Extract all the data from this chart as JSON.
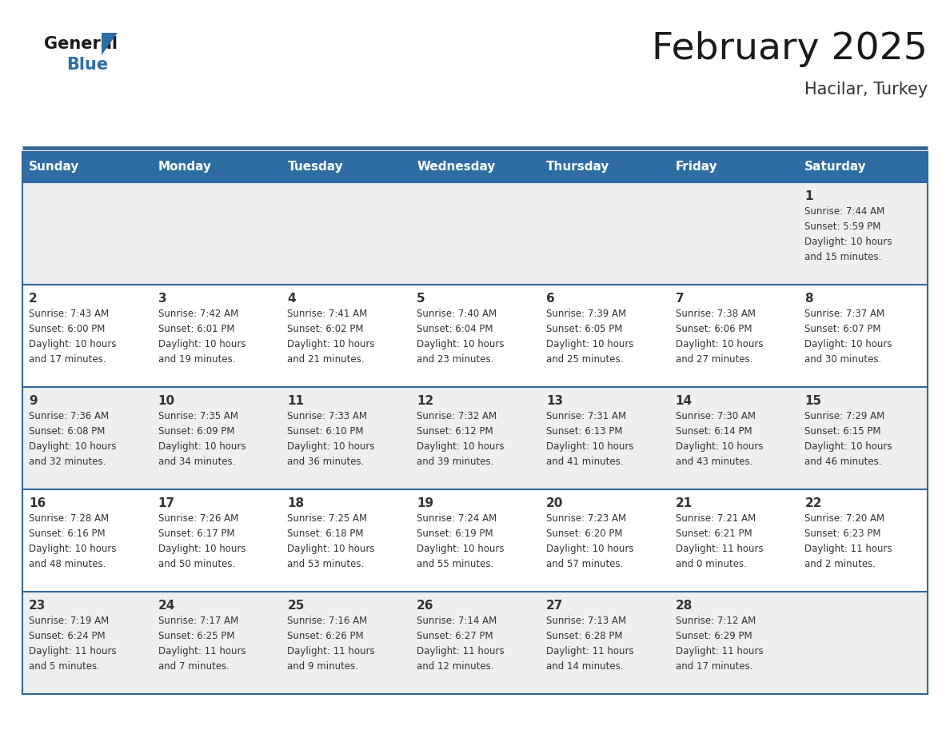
{
  "title": "February 2025",
  "subtitle": "Hacilar, Turkey",
  "header_bg": "#2E6DA4",
  "header_text": "#FFFFFF",
  "cell_bg_odd": "#EFEFEF",
  "cell_bg_even": "#FFFFFF",
  "day_headers": [
    "Sunday",
    "Monday",
    "Tuesday",
    "Wednesday",
    "Thursday",
    "Friday",
    "Saturday"
  ],
  "title_color": "#1a1a1a",
  "subtitle_color": "#333333",
  "day_num_color": "#333333",
  "cell_text_color": "#333333",
  "grid_color": "#336699",
  "logo_general_color": "#1a1a1a",
  "logo_blue_color": "#2E6DA4",
  "logo_triangle_color": "#2E6DA4",
  "calendar_data": [
    [
      {
        "day": "",
        "info": ""
      },
      {
        "day": "",
        "info": ""
      },
      {
        "day": "",
        "info": ""
      },
      {
        "day": "",
        "info": ""
      },
      {
        "day": "",
        "info": ""
      },
      {
        "day": "",
        "info": ""
      },
      {
        "day": "1",
        "info": "Sunrise: 7:44 AM\nSunset: 5:59 PM\nDaylight: 10 hours\nand 15 minutes."
      }
    ],
    [
      {
        "day": "2",
        "info": "Sunrise: 7:43 AM\nSunset: 6:00 PM\nDaylight: 10 hours\nand 17 minutes."
      },
      {
        "day": "3",
        "info": "Sunrise: 7:42 AM\nSunset: 6:01 PM\nDaylight: 10 hours\nand 19 minutes."
      },
      {
        "day": "4",
        "info": "Sunrise: 7:41 AM\nSunset: 6:02 PM\nDaylight: 10 hours\nand 21 minutes."
      },
      {
        "day": "5",
        "info": "Sunrise: 7:40 AM\nSunset: 6:04 PM\nDaylight: 10 hours\nand 23 minutes."
      },
      {
        "day": "6",
        "info": "Sunrise: 7:39 AM\nSunset: 6:05 PM\nDaylight: 10 hours\nand 25 minutes."
      },
      {
        "day": "7",
        "info": "Sunrise: 7:38 AM\nSunset: 6:06 PM\nDaylight: 10 hours\nand 27 minutes."
      },
      {
        "day": "8",
        "info": "Sunrise: 7:37 AM\nSunset: 6:07 PM\nDaylight: 10 hours\nand 30 minutes."
      }
    ],
    [
      {
        "day": "9",
        "info": "Sunrise: 7:36 AM\nSunset: 6:08 PM\nDaylight: 10 hours\nand 32 minutes."
      },
      {
        "day": "10",
        "info": "Sunrise: 7:35 AM\nSunset: 6:09 PM\nDaylight: 10 hours\nand 34 minutes."
      },
      {
        "day": "11",
        "info": "Sunrise: 7:33 AM\nSunset: 6:10 PM\nDaylight: 10 hours\nand 36 minutes."
      },
      {
        "day": "12",
        "info": "Sunrise: 7:32 AM\nSunset: 6:12 PM\nDaylight: 10 hours\nand 39 minutes."
      },
      {
        "day": "13",
        "info": "Sunrise: 7:31 AM\nSunset: 6:13 PM\nDaylight: 10 hours\nand 41 minutes."
      },
      {
        "day": "14",
        "info": "Sunrise: 7:30 AM\nSunset: 6:14 PM\nDaylight: 10 hours\nand 43 minutes."
      },
      {
        "day": "15",
        "info": "Sunrise: 7:29 AM\nSunset: 6:15 PM\nDaylight: 10 hours\nand 46 minutes."
      }
    ],
    [
      {
        "day": "16",
        "info": "Sunrise: 7:28 AM\nSunset: 6:16 PM\nDaylight: 10 hours\nand 48 minutes."
      },
      {
        "day": "17",
        "info": "Sunrise: 7:26 AM\nSunset: 6:17 PM\nDaylight: 10 hours\nand 50 minutes."
      },
      {
        "day": "18",
        "info": "Sunrise: 7:25 AM\nSunset: 6:18 PM\nDaylight: 10 hours\nand 53 minutes."
      },
      {
        "day": "19",
        "info": "Sunrise: 7:24 AM\nSunset: 6:19 PM\nDaylight: 10 hours\nand 55 minutes."
      },
      {
        "day": "20",
        "info": "Sunrise: 7:23 AM\nSunset: 6:20 PM\nDaylight: 10 hours\nand 57 minutes."
      },
      {
        "day": "21",
        "info": "Sunrise: 7:21 AM\nSunset: 6:21 PM\nDaylight: 11 hours\nand 0 minutes."
      },
      {
        "day": "22",
        "info": "Sunrise: 7:20 AM\nSunset: 6:23 PM\nDaylight: 11 hours\nand 2 minutes."
      }
    ],
    [
      {
        "day": "23",
        "info": "Sunrise: 7:19 AM\nSunset: 6:24 PM\nDaylight: 11 hours\nand 5 minutes."
      },
      {
        "day": "24",
        "info": "Sunrise: 7:17 AM\nSunset: 6:25 PM\nDaylight: 11 hours\nand 7 minutes."
      },
      {
        "day": "25",
        "info": "Sunrise: 7:16 AM\nSunset: 6:26 PM\nDaylight: 11 hours\nand 9 minutes."
      },
      {
        "day": "26",
        "info": "Sunrise: 7:14 AM\nSunset: 6:27 PM\nDaylight: 11 hours\nand 12 minutes."
      },
      {
        "day": "27",
        "info": "Sunrise: 7:13 AM\nSunset: 6:28 PM\nDaylight: 11 hours\nand 14 minutes."
      },
      {
        "day": "28",
        "info": "Sunrise: 7:12 AM\nSunset: 6:29 PM\nDaylight: 11 hours\nand 17 minutes."
      },
      {
        "day": "",
        "info": ""
      }
    ]
  ]
}
